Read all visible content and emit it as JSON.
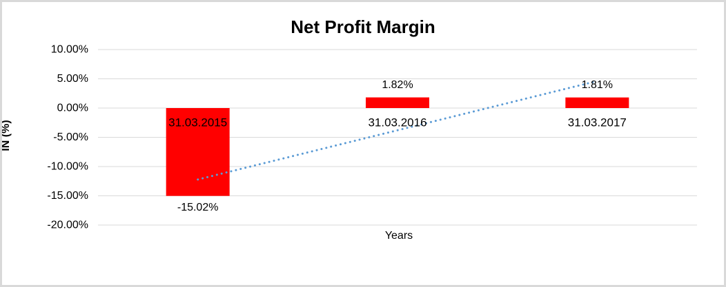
{
  "chart_data": {
    "type": "bar",
    "title": "Net Profit Margin",
    "xlabel": "Years",
    "ylabel": "IN (%)",
    "categories": [
      "31.03.2015",
      "31.03.2016",
      "31.03.2017"
    ],
    "values": [
      -15.02,
      1.82,
      1.81
    ],
    "data_labels": [
      "-15.02%",
      "1.82%",
      "1.81%"
    ],
    "ylim": [
      -20,
      10
    ],
    "ytick_step": 5,
    "ytick_labels": [
      "10.00%",
      "5.00%",
      "0.00%",
      "-5.00%",
      "-10.00%",
      "-15.00%",
      "-20.00%"
    ],
    "grid": true,
    "legend": "none",
    "bar_color": "#ff0000",
    "gridline_color": "#d9d9d9",
    "text_color": "#000000",
    "trendline": {
      "style": "dotted",
      "color": "#5b9bd5",
      "fit": "linear"
    }
  },
  "frame": {
    "border_color": "#d9d9d9",
    "background": "#ffffff"
  }
}
